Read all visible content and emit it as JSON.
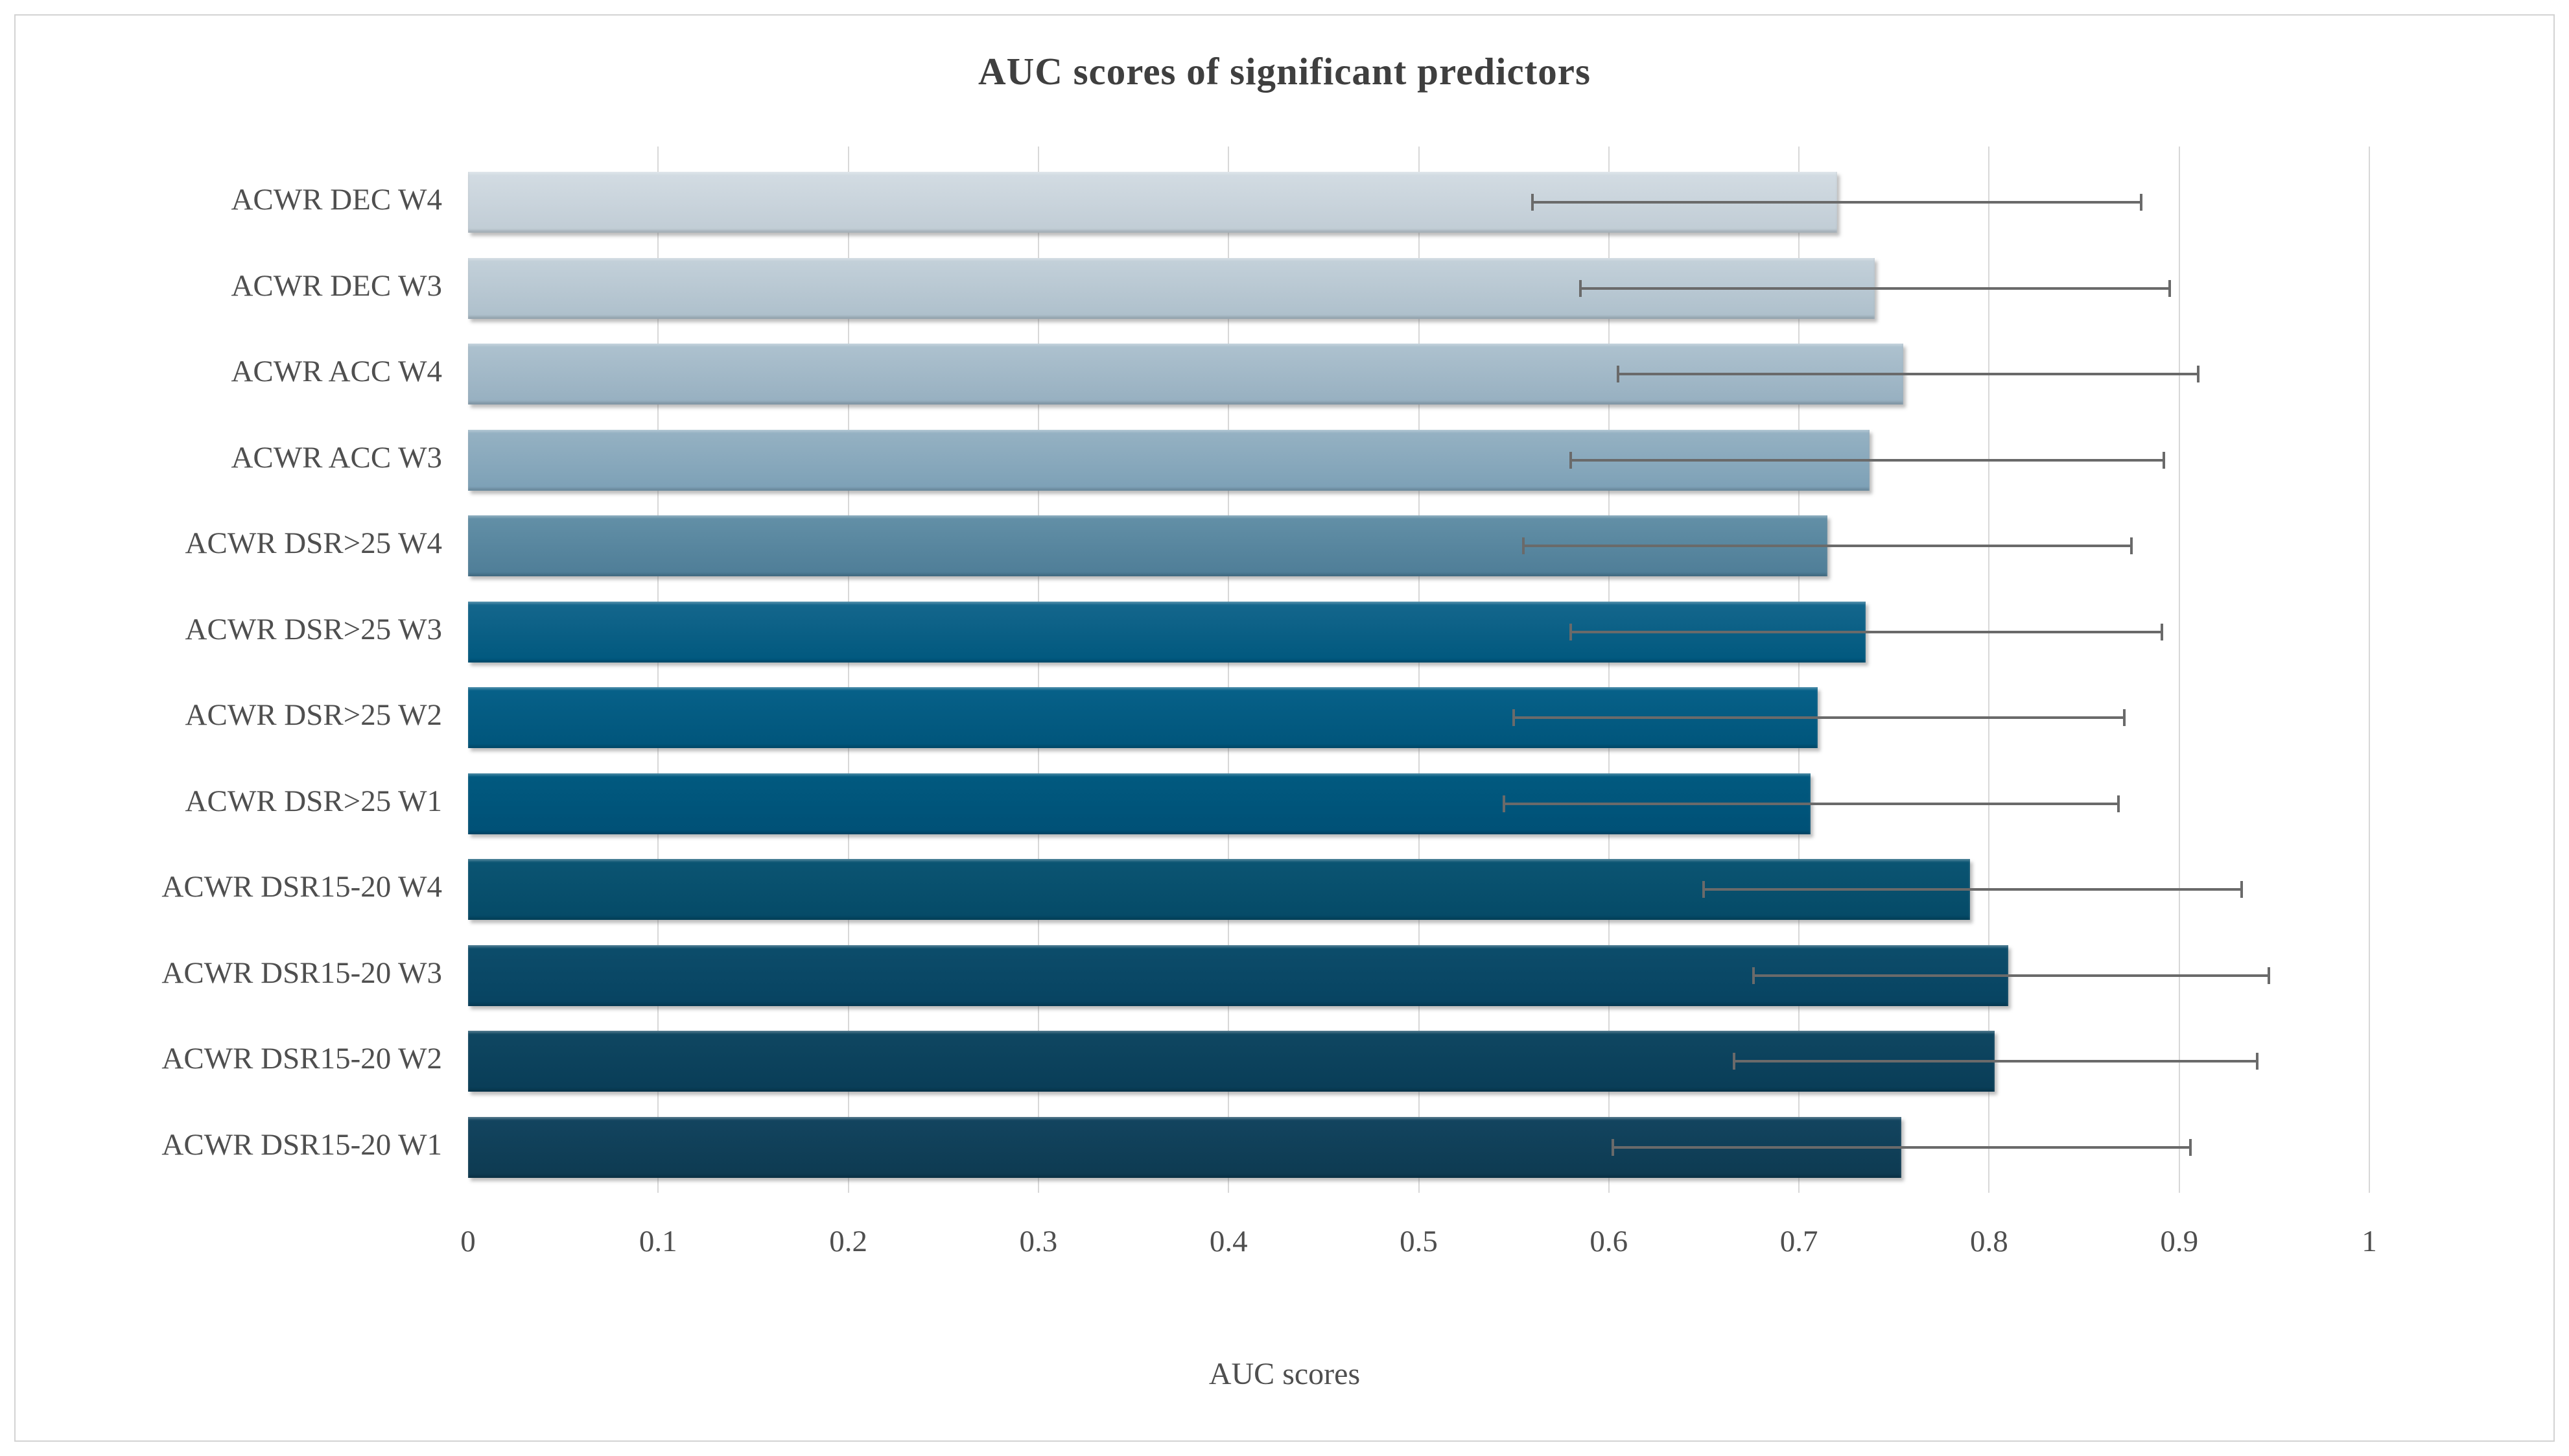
{
  "chart_data": {
    "type": "bar",
    "orientation": "horizontal",
    "title": "AUC scores of significant predictors",
    "xlabel": "AUC scores",
    "ylabel": "",
    "xlim": [
      0,
      1
    ],
    "xticks": [
      0,
      0.1,
      0.2,
      0.3,
      0.4,
      0.5,
      0.6,
      0.7,
      0.8,
      0.9,
      1
    ],
    "xtick_labels": [
      "0",
      "0.1",
      "0.2",
      "0.3",
      "0.4",
      "0.5",
      "0.6",
      "0.7",
      "0.8",
      "0.9",
      "1"
    ],
    "grid": "vertical",
    "legend": "none",
    "error_bars": true,
    "rows": [
      {
        "label": "ACWR DEC W4",
        "value": 0.72,
        "ci_low": 0.56,
        "ci_high": 0.88,
        "color_top": "#d3dce3",
        "color_bottom": "#c0ccd5"
      },
      {
        "label": "ACWR DEC W3",
        "value": 0.74,
        "ci_low": 0.585,
        "ci_high": 0.895,
        "color_top": "#c4d1da",
        "color_bottom": "#adbfcb"
      },
      {
        "label": "ACWR ACC W4",
        "value": 0.755,
        "ci_low": 0.605,
        "ci_high": 0.91,
        "color_top": "#aec2cf",
        "color_bottom": "#96afc0"
      },
      {
        "label": "ACWR ACC W3",
        "value": 0.737,
        "ci_low": 0.58,
        "ci_high": 0.892,
        "color_top": "#96b2c3",
        "color_bottom": "#7ca0b6"
      },
      {
        "label": "ACWR DSR>25 W4",
        "value": 0.715,
        "ci_low": 0.555,
        "ci_high": 0.875,
        "color_top": "#6390a7",
        "color_bottom": "#4e7d97"
      },
      {
        "label": "ACWR DSR>25 W3",
        "value": 0.735,
        "ci_low": 0.58,
        "ci_high": 0.891,
        "color_top": "#15678d",
        "color_bottom": "#00587e"
      },
      {
        "label": "ACWR DSR>25 W2",
        "value": 0.71,
        "ci_low": 0.55,
        "ci_high": 0.871,
        "color_top": "#076189",
        "color_bottom": "#00557b"
      },
      {
        "label": "ACWR DSR>25 W1",
        "value": 0.706,
        "ci_low": 0.545,
        "ci_high": 0.868,
        "color_top": "#015a80",
        "color_bottom": "#005076"
      },
      {
        "label": "ACWR DSR15-20 W4",
        "value": 0.79,
        "ci_low": 0.65,
        "ci_high": 0.933,
        "color_top": "#0b5573",
        "color_bottom": "#054a67"
      },
      {
        "label": "ACWR DSR15-20 W3",
        "value": 0.81,
        "ci_low": 0.676,
        "ci_high": 0.947,
        "color_top": "#0d4d6b",
        "color_bottom": "#074361"
      },
      {
        "label": "ACWR DSR15-20 W2",
        "value": 0.803,
        "ci_low": 0.666,
        "ci_high": 0.941,
        "color_top": "#0f4762",
        "color_bottom": "#093d57"
      },
      {
        "label": "ACWR DSR15-20 W1",
        "value": 0.754,
        "ci_low": 0.602,
        "ci_high": 0.906,
        "color_top": "#134560",
        "color_bottom": "#0d3a51"
      }
    ]
  },
  "colors": {
    "background": "#ffffff",
    "frame_border": "#d3d3d3",
    "gridline": "#d8d8d8",
    "error_bar": "#6a6a6a",
    "title_text": "#3f3f3f",
    "axis_text": "#4f4f4f"
  }
}
